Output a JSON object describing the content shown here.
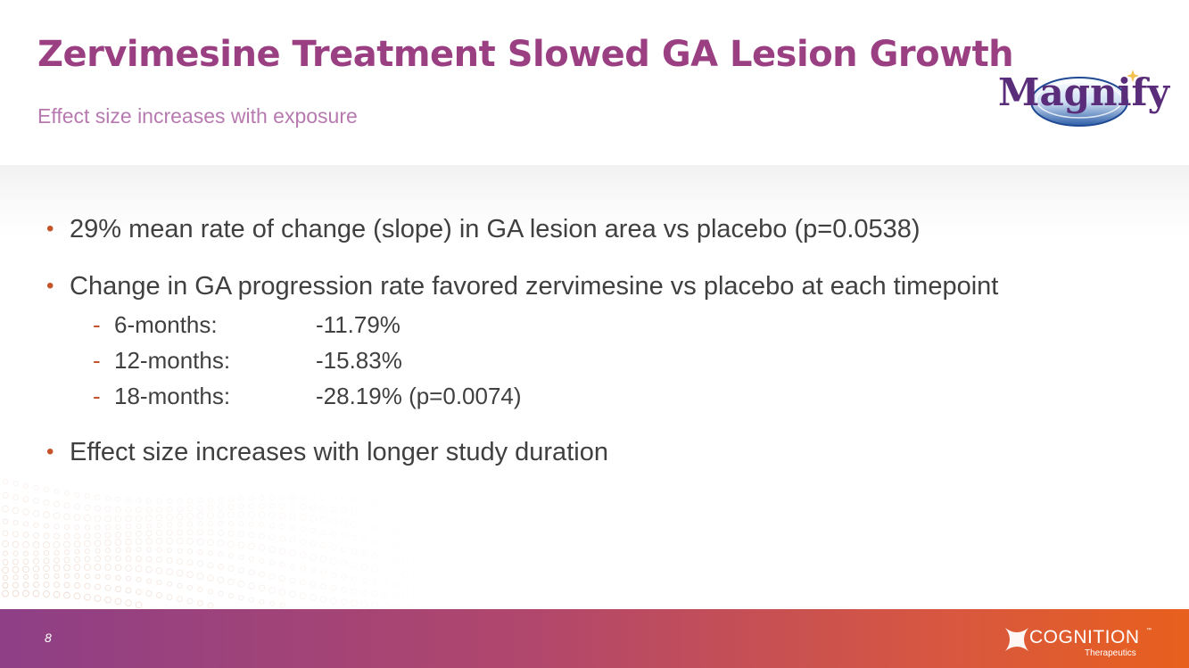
{
  "slide": {
    "title": "Zervimesine Treatment Slowed GA Lesion Growth",
    "subtitle": "Effect size increases with exposure",
    "page_number": "8"
  },
  "logos": {
    "magnify": {
      "text": "Magnify",
      "icon": "magnify-logo"
    },
    "cognition": {
      "name": "COGNITION",
      "tagline": "Therapeutics",
      "trademark": "™",
      "icon": "cognition-logo"
    }
  },
  "bullets": [
    {
      "text": "29% mean rate of change (slope) in GA lesion area vs placebo (p=0.0538)"
    },
    {
      "text": "Change in GA progression rate favored zervimesine vs placebo at each timepoint",
      "subs": [
        {
          "label": "6-months:",
          "value": "-11.79%"
        },
        {
          "label": "12-months:",
          "value": "-15.83%"
        },
        {
          "label": "18-months:",
          "value": "-28.19% (p=0.0074)"
        }
      ]
    },
    {
      "text": "Effect size increases with longer study duration"
    }
  ],
  "markers": {
    "bullet": "•",
    "dash": "-"
  },
  "colors": {
    "title": "#9b3f83",
    "subtitle": "#b77ab0",
    "body_text": "#404040",
    "bullet_accent": "#c4542a",
    "footer_start": "#8e3f86",
    "footer_end": "#e8601d"
  }
}
